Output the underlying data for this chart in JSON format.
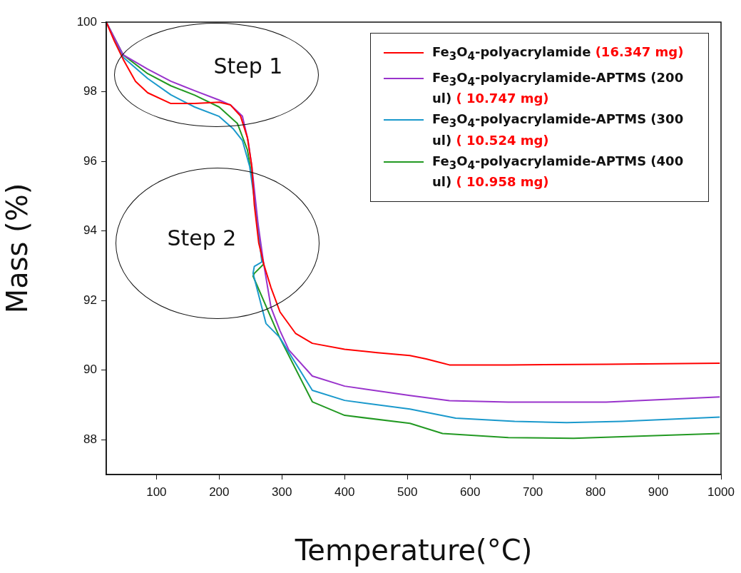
{
  "chart_data": {
    "type": "line",
    "xlabel": "Temperature(°C)",
    "ylabel": "Mass (%)",
    "xlim": [
      20,
      1000
    ],
    "xticks": [
      100,
      200,
      300,
      400,
      500,
      600,
      700,
      800,
      900,
      1000
    ],
    "ylim": [
      87,
      100
    ],
    "yticks": [
      88,
      90,
      92,
      94,
      96,
      98,
      100
    ],
    "grid": false,
    "legend": "top right",
    "marker": "none",
    "line_style": "solid",
    "annotations": [
      "Step 1",
      "Step 2"
    ],
    "series": [
      {
        "name": "Fe$_{3}$O$_{4}$-polyacrylamide (16.347 mg)",
        "color": "#ff0000",
        "x": [
          20,
          32.5,
          47,
          66.6,
          86,
          123,
          161,
          200,
          218,
          234,
          245,
          252,
          256,
          263,
          271,
          282.6,
          297,
          322,
          348.5,
          400,
          452,
          504,
          530,
          567,
          661,
          817,
          998
        ],
        "values": [
          100,
          99.47,
          98.93,
          98.3,
          97.97,
          97.66,
          97.66,
          97.7,
          97.62,
          97.3,
          96.68,
          95.86,
          94.75,
          93.66,
          93.05,
          92.37,
          91.67,
          91.05,
          90.77,
          90.6,
          90.5,
          90.42,
          90.32,
          90.15,
          90.15,
          90.17,
          90.2
        ]
      },
      {
        "name": "Fe$_{3}$O$_{4}$-polyacrylamide-APTMS (200 ul) ( 10.747 mg)",
        "color": "#9933cc",
        "x": [
          20,
          47,
          86,
          123,
          161,
          200,
          218,
          237,
          246,
          252,
          262,
          271,
          282.6,
          297,
          311,
          348.5,
          400,
          504,
          567,
          661,
          817,
          998
        ],
        "values": [
          100,
          99.06,
          98.65,
          98.3,
          98.03,
          97.76,
          97.62,
          97.3,
          96.6,
          95.86,
          94.2,
          93.05,
          91.8,
          91.13,
          90.58,
          89.83,
          89.54,
          89.27,
          89.12,
          89.08,
          89.08,
          89.23
        ]
      },
      {
        "name": "Fe$_{3}$O$_{4}$-polyacrylamide-APTMS (300 ul) ( 10.524 mg)",
        "color": "#1a99cc",
        "x": [
          20,
          47,
          86,
          123,
          161,
          200,
          222,
          237,
          248.5,
          260,
          268,
          256,
          254,
          274.6,
          296,
          348.5,
          400,
          504,
          577,
          671,
          754,
          842,
          998
        ],
        "values": [
          100,
          98.99,
          98.38,
          97.91,
          97.56,
          97.29,
          96.94,
          96.6,
          95.86,
          94.42,
          93.11,
          92.98,
          92.78,
          91.34,
          90.95,
          89.42,
          89.13,
          88.88,
          88.62,
          88.53,
          88.49,
          88.53,
          88.65
        ]
      },
      {
        "name": "Fe$_{3}$O$_{4}$-polyacrylamide-APTMS (400 ul) ( 10.958 mg)",
        "color": "#229922",
        "x": [
          20,
          47,
          86,
          123,
          161,
          200,
          229,
          245,
          252,
          268,
          271,
          256,
          254,
          296,
          348.5,
          400,
          504,
          556,
          661,
          765,
          998
        ],
        "values": [
          100,
          99.06,
          98.52,
          98.17,
          97.9,
          97.56,
          97.09,
          96.33,
          95.57,
          93.19,
          93.05,
          92.78,
          92.7,
          90.95,
          89.09,
          88.7,
          88.47,
          88.18,
          88.06,
          88.04,
          88.18
        ]
      }
    ]
  }
}
